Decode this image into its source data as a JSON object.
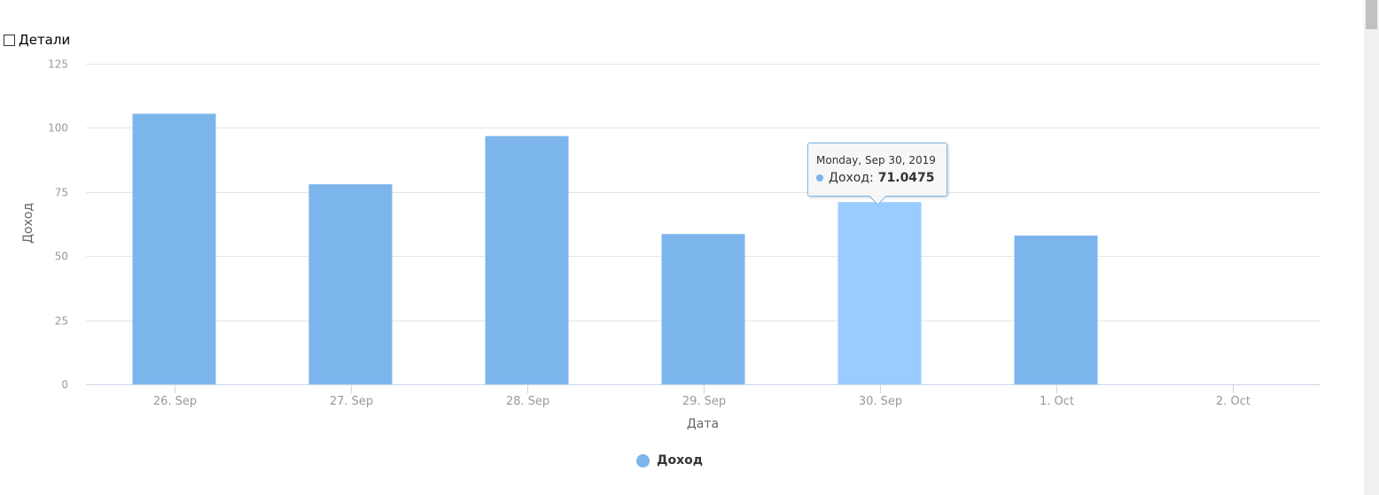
{
  "details_checkbox": {
    "label": "Детали",
    "checked": false
  },
  "tooltip": {
    "date": "Monday, Sep 30, 2019",
    "series": "Доход",
    "value": "71.0475"
  },
  "colors": {
    "bar": "#7cb5ec",
    "bar_hover": "#99ccff",
    "grid": "#e6e6e6",
    "axis_label": "#666666",
    "tick_label": "#999999"
  },
  "chart_data": {
    "type": "bar",
    "categories": [
      "26. Sep",
      "27. Sep",
      "28. Sep",
      "29. Sep",
      "30. Sep",
      "1. Oct",
      "2. Oct"
    ],
    "series": [
      {
        "name": "Доход",
        "values": [
          105.5,
          78.0,
          96.8,
          58.6,
          71.0475,
          58.0,
          null
        ]
      }
    ],
    "xlabel": "Дата",
    "ylabel": "Доход",
    "ylim": [
      0,
      125
    ],
    "yticks": [
      0,
      25,
      50,
      75,
      100,
      125
    ],
    "grid": true,
    "legend": "bottom-center",
    "highlighted_index": 4
  }
}
